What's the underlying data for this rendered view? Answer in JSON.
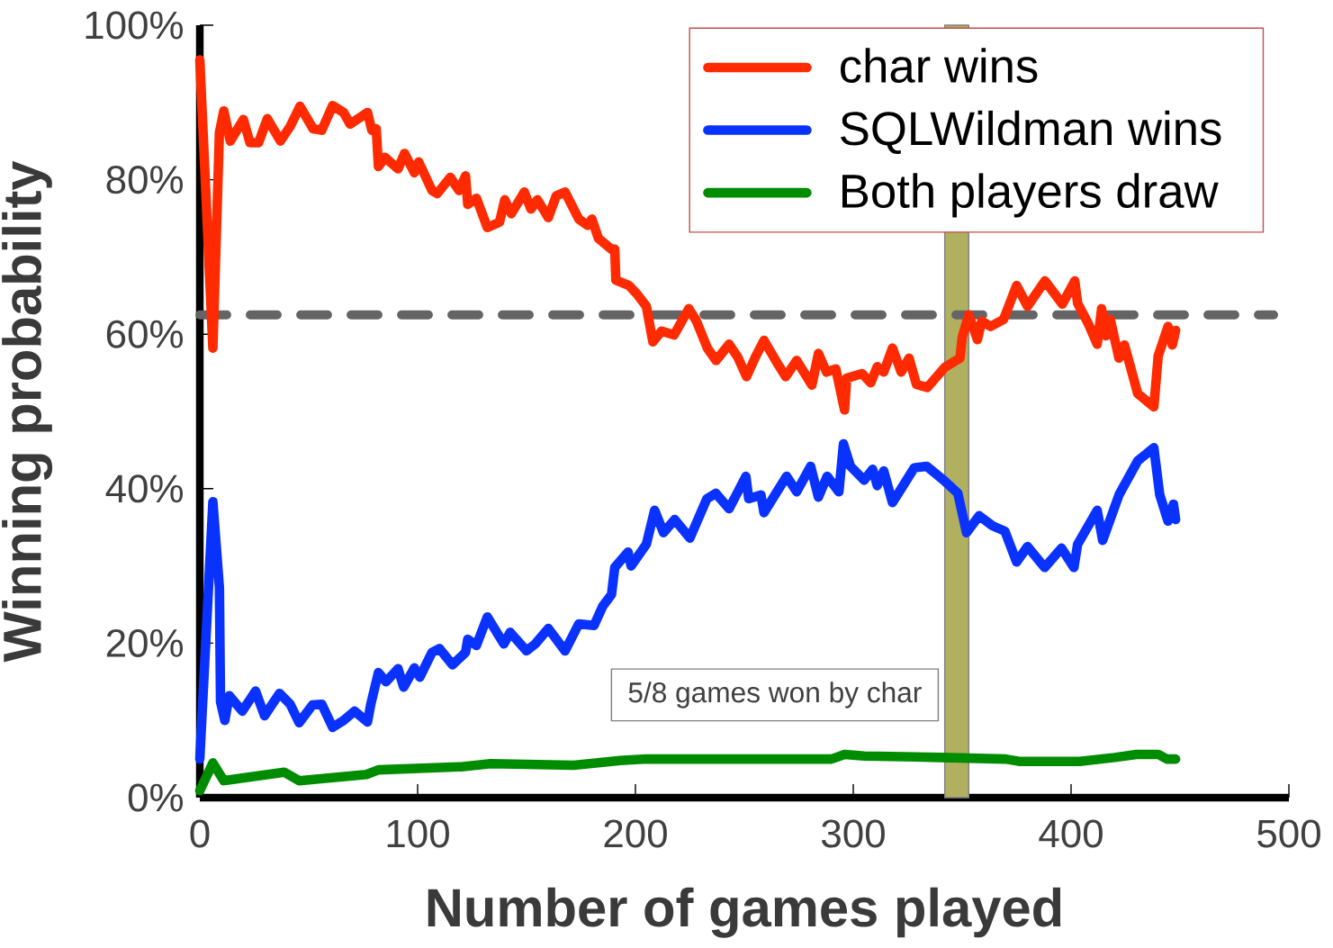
{
  "chart_data": {
    "type": "line",
    "xlabel": "Number of games played",
    "ylabel": "Winning probability",
    "xlim": [
      0,
      500
    ],
    "ylim": [
      0,
      100
    ],
    "xticks": [
      0,
      100,
      200,
      300,
      400,
      500
    ],
    "yticks": [
      {
        "value": 0,
        "label": "0%"
      },
      {
        "value": 20,
        "label": "20%"
      },
      {
        "value": 40,
        "label": "40%"
      },
      {
        "value": 60,
        "label": "60%"
      },
      {
        "value": 80,
        "label": "80%"
      },
      {
        "value": 100,
        "label": "100%"
      }
    ],
    "legend": "top right",
    "line_style": "solid",
    "series": [
      {
        "name": "char wins",
        "color": "#ff2a00",
        "x": [
          0,
          6,
          9,
          11,
          14,
          20,
          23,
          27,
          31,
          37,
          41.5,
          46,
          52,
          56,
          61,
          66,
          69,
          77,
          79,
          81,
          82,
          85,
          91,
          94,
          98.5,
          100.5,
          106.6,
          109,
          115,
          119,
          122,
          123,
          127,
          132,
          137.6,
          140,
          143,
          149,
          152,
          155,
          160,
          163.6,
          167.7,
          174,
          178,
          180,
          183,
          189,
          190.5,
          191,
          197,
          200.7,
          205,
          208,
          212,
          217.7,
          224.5,
          228,
          233,
          237,
          243,
          247,
          251,
          255,
          259,
          265,
          269,
          274,
          281,
          284,
          287.7,
          292,
          296,
          297,
          304,
          308,
          311,
          314,
          318,
          322,
          325.6,
          329,
          334,
          342,
          349,
          350,
          353,
          357,
          359,
          363,
          369,
          375,
          380,
          388,
          396,
          401.7,
          403,
          408,
          412,
          414,
          416,
          418,
          422,
          424.5,
          430.6,
          438,
          440,
          444.5,
          446.5,
          448
        ],
        "values": [
          95.5,
          58.2,
          86.1,
          88.9,
          85,
          87.8,
          84.8,
          84.8,
          87.9,
          85,
          86.9,
          89.5,
          86.6,
          86.4,
          89.6,
          88.7,
          87.2,
          88.7,
          86.4,
          86.6,
          81.7,
          82.9,
          81.4,
          83.4,
          80.9,
          82.3,
          78.6,
          78.2,
          80.3,
          78.6,
          80.5,
          76.8,
          77.6,
          73.8,
          74.5,
          77.4,
          75.6,
          78.4,
          76.2,
          77.4,
          75.1,
          77.9,
          78.4,
          74.9,
          74.1,
          74.9,
          72.4,
          71,
          71,
          67,
          66.3,
          65.2,
          63.6,
          59,
          60.4,
          59.9,
          63.3,
          61.7,
          58.2,
          56.6,
          58.7,
          57,
          54.5,
          57,
          59.2,
          56.3,
          54.5,
          56.6,
          53.4,
          57.5,
          55.1,
          55.5,
          50.2,
          54.3,
          54.9,
          53.7,
          55.8,
          55.1,
          58.2,
          55.1,
          56.9,
          53.5,
          53.1,
          55.7,
          56.9,
          59.6,
          62.5,
          59.3,
          61.7,
          61,
          61.9,
          66.3,
          63.6,
          66.9,
          63.9,
          66.9,
          64,
          61.3,
          58.7,
          63.3,
          59.8,
          61.9,
          56.9,
          58.6,
          52.3,
          50.6,
          57.2,
          61,
          58.6,
          60.5
        ]
      },
      {
        "name": "SQLWildman wins",
        "color": "#0a32ff",
        "x": [
          0,
          6,
          9,
          9.5,
          11.5,
          13.5,
          19.5,
          25.6,
          29.7,
          36.6,
          41.5,
          45.6,
          51.7,
          56,
          61,
          66,
          71,
          77,
          78.5,
          82,
          85.5,
          91,
          93.6,
          98.5,
          101,
          106.6,
          110,
          116,
          122,
          123,
          127,
          132,
          139.6,
          142.5,
          150,
          154,
          160,
          167.7,
          174,
          181,
          185,
          189,
          190.5,
          196.6,
          198,
          205,
          208.8,
          212.9,
          218,
          225,
          232.8,
          236.9,
          243,
          250.7,
          252,
          257.6,
          259,
          269.4,
          274,
          280.4,
          284,
          288,
          293.4,
          295.5,
          298.7,
          305,
          308.9,
          311,
          314,
          318,
          324,
          328,
          333.7,
          341.5,
          348,
          352,
          357.8,
          363.9,
          369.6,
          375,
          380,
          387.9,
          395.6,
          401.3,
          403,
          412,
          414.5,
          422,
          430.6,
          438,
          440.7,
          444.5,
          447,
          448
        ],
        "values": [
          5,
          38.3,
          27.2,
          12.4,
          10,
          13.2,
          11.2,
          13.8,
          10.6,
          13.5,
          12.1,
          9.7,
          12,
          12.1,
          9.1,
          10,
          11.2,
          9.8,
          12.1,
          16.2,
          15,
          16.7,
          14.3,
          16.8,
          15.6,
          18.8,
          19.3,
          17.2,
          18.8,
          20.5,
          19.7,
          23.4,
          19.9,
          21.4,
          19,
          19.9,
          21.9,
          19,
          22.5,
          22.3,
          24.8,
          26.3,
          29.8,
          31.8,
          30,
          32.8,
          37.2,
          34.3,
          36,
          33.6,
          38.7,
          39.4,
          37.4,
          41.6,
          38.7,
          39.2,
          36.9,
          41.6,
          39.6,
          42.9,
          38.9,
          41.6,
          39.6,
          45.8,
          42.9,
          41.1,
          42.5,
          40.4,
          42.3,
          38.2,
          40.9,
          42.7,
          42.9,
          41.1,
          39.4,
          34.3,
          36.5,
          35.2,
          34.5,
          30.5,
          32.5,
          29.8,
          32.3,
          29.8,
          32.8,
          37.2,
          33.3,
          39.2,
          43.6,
          45.3,
          39.2,
          35.8,
          38,
          36
        ]
      },
      {
        "name": "Both players draw",
        "color": "#008c00",
        "x": [
          0,
          6,
          11,
          38.7,
          45.6,
          76.5,
          82,
          120,
          133.5,
          171.7,
          193,
          205,
          290,
          296,
          305,
          340,
          370,
          376,
          404,
          420,
          430,
          440,
          444,
          448
        ],
        "values": [
          0.9,
          4.5,
          2.2,
          3.3,
          2.2,
          3,
          3.6,
          4,
          4.4,
          4.2,
          4.8,
          5,
          5,
          5.6,
          5.4,
          5.2,
          5,
          4.7,
          4.7,
          5.2,
          5.6,
          5.6,
          5,
          5
        ]
      }
    ],
    "ref_lines": [
      {
        "axis": "y",
        "value": 62.5,
        "color": "#646464",
        "line_style": "dashed"
      }
    ],
    "bands": [
      {
        "axis": "x",
        "from": 342,
        "to": 353,
        "color": "#b0b060"
      }
    ],
    "annotations": [
      "5/8 games won by char"
    ]
  }
}
